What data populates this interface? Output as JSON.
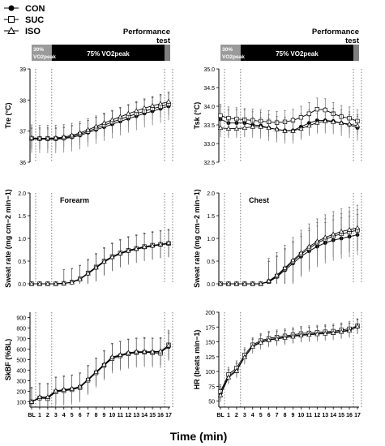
{
  "legend": [
    {
      "label": "CON",
      "marker": "filled-circle"
    },
    {
      "label": "SUC",
      "marker": "open-square"
    },
    {
      "label": "ISO",
      "marker": "open-triangle"
    }
  ],
  "protocol_bar": {
    "performance_label": "Performance\ntest",
    "warmup_label": "30%\nVO2peak",
    "main_label": "75% VO2peak",
    "colors": {
      "warmup": "#9a9a9a",
      "main": "#000000",
      "performance": "#7f7f7f"
    }
  },
  "x_axis": {
    "title": "Time (min)",
    "ticks": [
      "BL",
      "1",
      "2",
      "3",
      "4",
      "5",
      "6",
      "7",
      "8",
      "9",
      "10",
      "11",
      "12",
      "13",
      "14",
      "15",
      "16",
      "17"
    ]
  },
  "phase_markers_x": [
    0.5,
    2.5,
    16.5,
    17.5
  ],
  "colors": {
    "con_fill": "#000000",
    "open_fill": "#ffffff",
    "line": "#000000"
  },
  "chart_data": [
    {
      "type": "line",
      "panel": "tre",
      "ylabel": "Tre (°C)",
      "ylim": [
        36,
        39
      ],
      "yticks": [
        36,
        37,
        38,
        39
      ],
      "x": [
        "BL",
        "1",
        "2",
        "3",
        "4",
        "5",
        "6",
        "7",
        "8",
        "9",
        "10",
        "11",
        "12",
        "13",
        "14",
        "15",
        "16",
        "17"
      ],
      "series": [
        {
          "name": "CON",
          "values": [
            36.75,
            36.74,
            36.74,
            36.74,
            36.76,
            36.8,
            36.86,
            36.95,
            37.04,
            37.13,
            37.22,
            37.31,
            37.4,
            37.48,
            37.57,
            37.64,
            37.72,
            37.8
          ],
          "error": 0.45
        },
        {
          "name": "SUC",
          "values": [
            36.77,
            36.76,
            36.76,
            36.76,
            36.78,
            36.83,
            36.9,
            36.99,
            37.09,
            37.19,
            37.29,
            37.38,
            37.47,
            37.56,
            37.64,
            37.72,
            37.79,
            37.87
          ],
          "error": 0.35
        },
        {
          "name": "ISO",
          "values": [
            36.78,
            36.77,
            36.77,
            36.78,
            36.81,
            36.86,
            36.94,
            37.04,
            37.15,
            37.26,
            37.36,
            37.46,
            37.56,
            37.65,
            37.74,
            37.81,
            37.88,
            37.95
          ],
          "error": 0.3
        }
      ]
    },
    {
      "type": "line",
      "panel": "tsk",
      "ylabel": "Tsk (°C)",
      "ylim": [
        32.5,
        35.0
      ],
      "yticks": [
        32.5,
        33.0,
        33.5,
        34.0,
        34.5,
        35.0
      ],
      "x": [
        "BL",
        "1",
        "2",
        "3",
        "4",
        "5",
        "6",
        "7",
        "8",
        "9",
        "10",
        "11",
        "12",
        "13",
        "14",
        "15",
        "16",
        "17"
      ],
      "series": [
        {
          "name": "CON",
          "values": [
            33.65,
            33.55,
            33.55,
            33.55,
            33.5,
            33.48,
            33.42,
            33.38,
            33.35,
            33.35,
            33.45,
            33.55,
            33.62,
            33.62,
            33.6,
            33.55,
            33.5,
            33.42
          ],
          "error": 0.35
        },
        {
          "name": "SUC",
          "values": [
            33.75,
            33.68,
            33.66,
            33.64,
            33.62,
            33.6,
            33.58,
            33.56,
            33.58,
            33.62,
            33.7,
            33.8,
            33.92,
            33.9,
            33.8,
            33.72,
            33.68,
            33.6
          ],
          "error": 0.3
        },
        {
          "name": "ISO",
          "values": [
            33.42,
            33.4,
            33.4,
            33.42,
            33.45,
            33.45,
            33.42,
            33.38,
            33.34,
            33.34,
            33.4,
            33.48,
            33.56,
            33.6,
            33.58,
            33.55,
            33.52,
            33.48
          ],
          "error": 0.25
        }
      ]
    },
    {
      "type": "line",
      "panel": "sweat-forearm",
      "annotation": "Forearm",
      "ylabel": "Sweat rate (mg cm−2 min−1)",
      "ylim": [
        0,
        2.0
      ],
      "yticks": [
        0.0,
        0.5,
        1.0,
        1.5,
        2.0
      ],
      "x": [
        "BL",
        "1",
        "2",
        "3",
        "4",
        "5",
        "6",
        "7",
        "8",
        "9",
        "10",
        "11",
        "12",
        "13",
        "14",
        "15",
        "16",
        "17"
      ],
      "series": [
        {
          "name": "CON",
          "values": [
            0,
            0,
            0,
            0,
            0.01,
            0.03,
            0.1,
            0.22,
            0.35,
            0.48,
            0.58,
            0.66,
            0.72,
            0.76,
            0.8,
            0.83,
            0.86,
            0.88
          ],
          "error": 0.3
        },
        {
          "name": "SUC",
          "values": [
            0,
            0,
            0,
            0,
            0.01,
            0.04,
            0.11,
            0.24,
            0.37,
            0.5,
            0.6,
            0.68,
            0.74,
            0.78,
            0.82,
            0.85,
            0.87,
            0.89
          ],
          "error": 0.3
        },
        {
          "name": "ISO",
          "values": [
            0,
            0,
            0,
            0,
            0.01,
            0.03,
            0.1,
            0.23,
            0.36,
            0.49,
            0.59,
            0.67,
            0.73,
            0.77,
            0.81,
            0.84,
            0.87,
            0.9
          ],
          "error": 0.3
        }
      ]
    },
    {
      "type": "line",
      "panel": "sweat-chest",
      "annotation": "Chest",
      "ylabel": "Sweat rate (mg cm−2 min−1)",
      "ylim": [
        0,
        2.0
      ],
      "yticks": [
        0.0,
        0.5,
        1.0,
        1.5,
        2.0
      ],
      "x": [
        "BL",
        "1",
        "2",
        "3",
        "4",
        "5",
        "6",
        "7",
        "8",
        "9",
        "10",
        "11",
        "12",
        "13",
        "14",
        "15",
        "16",
        "17"
      ],
      "series": [
        {
          "name": "CON",
          "values": [
            0,
            0,
            0,
            0,
            0,
            0,
            0.04,
            0.15,
            0.3,
            0.45,
            0.6,
            0.72,
            0.82,
            0.9,
            0.96,
            1.0,
            1.04,
            1.08
          ],
          "error": 0.45
        },
        {
          "name": "SUC",
          "values": [
            0,
            0,
            0,
            0,
            0,
            0,
            0.05,
            0.17,
            0.33,
            0.49,
            0.65,
            0.78,
            0.9,
            0.98,
            1.05,
            1.1,
            1.14,
            1.18
          ],
          "error": 0.45
        },
        {
          "name": "ISO",
          "values": [
            0,
            0,
            0,
            0,
            0,
            0,
            0.06,
            0.19,
            0.35,
            0.52,
            0.68,
            0.82,
            0.93,
            1.02,
            1.09,
            1.15,
            1.19,
            1.23
          ],
          "error": 0.5
        }
      ]
    },
    {
      "type": "line",
      "panel": "skbf",
      "ylabel": "SkBF (%BL)",
      "ylim": [
        50,
        950
      ],
      "yticks": [
        100,
        200,
        300,
        400,
        500,
        600,
        700,
        800,
        900
      ],
      "x": [
        "BL",
        "1",
        "2",
        "3",
        "4",
        "5",
        "6",
        "7",
        "8",
        "9",
        "10",
        "11",
        "12",
        "13",
        "14",
        "15",
        "16",
        "17"
      ],
      "series": [
        {
          "name": "CON",
          "values": [
            100,
            140,
            140,
            200,
            210,
            220,
            240,
            310,
            380,
            450,
            520,
            540,
            560,
            570,
            570,
            570,
            575,
            620
          ],
          "error": 130
        },
        {
          "name": "SUC",
          "values": [
            100,
            135,
            130,
            195,
            205,
            215,
            235,
            305,
            375,
            445,
            510,
            535,
            555,
            565,
            570,
            565,
            560,
            640
          ],
          "error": 140
        },
        {
          "name": "ISO",
          "values": [
            100,
            145,
            145,
            205,
            215,
            225,
            245,
            315,
            385,
            455,
            525,
            545,
            565,
            575,
            575,
            575,
            580,
            635
          ],
          "error": 130
        }
      ]
    },
    {
      "type": "line",
      "panel": "hr",
      "ylabel": "HR (beats min−1)",
      "ylim": [
        40,
        200
      ],
      "yticks": [
        50,
        75,
        100,
        125,
        150,
        175,
        200
      ],
      "x": [
        "BL",
        "1",
        "2",
        "3",
        "4",
        "5",
        "6",
        "7",
        "8",
        "9",
        "10",
        "11",
        "12",
        "13",
        "14",
        "15",
        "16",
        "17"
      ],
      "series": [
        {
          "name": "CON",
          "values": [
            63,
            92,
            103,
            125,
            143,
            150,
            154,
            156,
            158,
            160,
            162,
            163,
            164,
            165,
            166,
            168,
            170,
            175
          ],
          "error": 12
        },
        {
          "name": "SUC",
          "values": [
            66,
            95,
            106,
            128,
            145,
            152,
            156,
            158,
            160,
            162,
            164,
            165,
            166,
            167,
            168,
            170,
            172,
            177
          ],
          "error": 12
        },
        {
          "name": "ISO",
          "values": [
            60,
            90,
            101,
            124,
            142,
            149,
            153,
            155,
            157,
            159,
            161,
            162,
            163,
            164,
            165,
            167,
            169,
            176
          ],
          "error": 12
        }
      ]
    }
  ]
}
